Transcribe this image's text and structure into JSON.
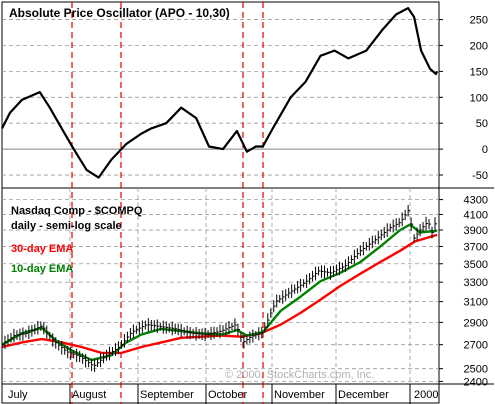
{
  "chart_data": [
    {
      "type": "line",
      "title": "Absolute Price Oscillator (APO - 10,30)",
      "yticks": [
        250,
        200,
        150,
        100,
        50,
        0,
        -50
      ],
      "ylim": [
        -75,
        280
      ],
      "grid": true,
      "series": [
        {
          "name": "APO",
          "color": "#000000",
          "points": [
            [
              0,
              40
            ],
            [
              8,
              70
            ],
            [
              20,
              95
            ],
            [
              38,
              110
            ],
            [
              48,
              80
            ],
            [
              60,
              40
            ],
            [
              72,
              0
            ],
            [
              85,
              -40
            ],
            [
              97,
              -55
            ],
            [
              110,
              -20
            ],
            [
              125,
              10
            ],
            [
              140,
              30
            ],
            [
              150,
              40
            ],
            [
              165,
              50
            ],
            [
              180,
              80
            ],
            [
              195,
              60
            ],
            [
              208,
              5
            ],
            [
              222,
              0
            ],
            [
              236,
              35
            ],
            [
              246,
              -5
            ],
            [
              255,
              5
            ],
            [
              262,
              5
            ],
            [
              272,
              40
            ],
            [
              290,
              100
            ],
            [
              305,
              130
            ],
            [
              320,
              180
            ],
            [
              334,
              190
            ],
            [
              348,
              175
            ],
            [
              366,
              190
            ],
            [
              382,
              230
            ],
            [
              396,
              260
            ],
            [
              408,
              272
            ],
            [
              414,
              255
            ],
            [
              421,
              190
            ],
            [
              430,
              155
            ],
            [
              436,
              145
            ],
            [
              437,
              150
            ]
          ]
        }
      ]
    },
    {
      "type": "line",
      "title": "Nasdaq Comp - $COMPQ",
      "subtitle": "daily - semi-log scale",
      "yticks": [
        4300,
        4100,
        3900,
        3700,
        3500,
        3300,
        3100,
        2900,
        2700,
        2500,
        2400
      ],
      "ylim": [
        2380,
        4350
      ],
      "log_scale": true,
      "grid": true,
      "x_labels": [
        "July",
        "August",
        "September",
        "October",
        "November",
        "December",
        "2000"
      ],
      "annotation": "© 2000, StockCharts.com, Inc.",
      "legend": [
        {
          "label": "30-day EMA",
          "color": "#ff0000"
        },
        {
          "label": "10-day EMA",
          "color": "#008000"
        }
      ],
      "series": [
        {
          "name": "30-day EMA",
          "color": "#ff0000",
          "points": [
            [
              0,
              2680
            ],
            [
              20,
              2720
            ],
            [
              40,
              2750
            ],
            [
              60,
              2720
            ],
            [
              80,
              2680
            ],
            [
              100,
              2630
            ],
            [
              120,
              2630
            ],
            [
              140,
              2680
            ],
            [
              160,
              2720
            ],
            [
              180,
              2760
            ],
            [
              200,
              2770
            ],
            [
              220,
              2780
            ],
            [
              240,
              2770
            ],
            [
              260,
              2800
            ],
            [
              280,
              2880
            ],
            [
              300,
              2990
            ],
            [
              320,
              3120
            ],
            [
              340,
              3260
            ],
            [
              360,
              3390
            ],
            [
              380,
              3520
            ],
            [
              400,
              3650
            ],
            [
              415,
              3760
            ],
            [
              437,
              3840
            ]
          ]
        },
        {
          "name": "10-day EMA",
          "color": "#008000",
          "points": [
            [
              0,
              2700
            ],
            [
              20,
              2800
            ],
            [
              40,
              2850
            ],
            [
              55,
              2730
            ],
            [
              70,
              2650
            ],
            [
              90,
              2570
            ],
            [
              110,
              2610
            ],
            [
              125,
              2720
            ],
            [
              140,
              2790
            ],
            [
              160,
              2840
            ],
            [
              180,
              2820
            ],
            [
              200,
              2800
            ],
            [
              222,
              2790
            ],
            [
              236,
              2830
            ],
            [
              246,
              2780
            ],
            [
              262,
              2810
            ],
            [
              280,
              3010
            ],
            [
              300,
              3150
            ],
            [
              320,
              3310
            ],
            [
              340,
              3400
            ],
            [
              360,
              3520
            ],
            [
              380,
              3700
            ],
            [
              400,
              3900
            ],
            [
              410,
              3970
            ],
            [
              420,
              3870
            ],
            [
              437,
              3890
            ]
          ]
        },
        {
          "name": "Nasdaq Comp - $COMPQ",
          "color": "#000000",
          "points": [
            [
              0,
              2700
            ],
            [
              12,
              2780
            ],
            [
              25,
              2800
            ],
            [
              40,
              2870
            ],
            [
              52,
              2730
            ],
            [
              65,
              2640
            ],
            [
              78,
              2600
            ],
            [
              92,
              2520
            ],
            [
              105,
              2610
            ],
            [
              118,
              2680
            ],
            [
              130,
              2810
            ],
            [
              145,
              2880
            ],
            [
              160,
              2860
            ],
            [
              175,
              2840
            ],
            [
              190,
              2800
            ],
            [
              205,
              2790
            ],
            [
              220,
              2820
            ],
            [
              235,
              2880
            ],
            [
              242,
              2720
            ],
            [
              250,
              2770
            ],
            [
              262,
              2810
            ],
            [
              275,
              3100
            ],
            [
              290,
              3200
            ],
            [
              305,
              3300
            ],
            [
              318,
              3420
            ],
            [
              330,
              3400
            ],
            [
              345,
              3480
            ],
            [
              360,
              3650
            ],
            [
              375,
              3780
            ],
            [
              390,
              3930
            ],
            [
              400,
              4000
            ],
            [
              408,
              4150
            ],
            [
              414,
              3800
            ],
            [
              420,
              3900
            ],
            [
              428,
              4010
            ],
            [
              432,
              3870
            ],
            [
              437,
              4050
            ]
          ]
        }
      ]
    }
  ]
}
